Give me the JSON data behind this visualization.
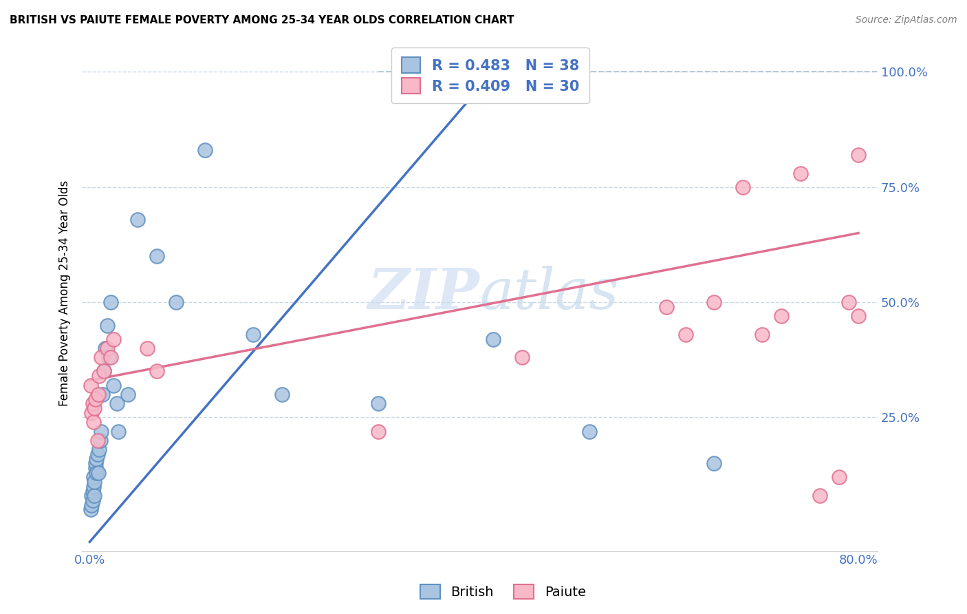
{
  "title": "BRITISH VS PAIUTE FEMALE POVERTY AMONG 25-34 YEAR OLDS CORRELATION CHART",
  "source": "Source: ZipAtlas.com",
  "ylabel": "Female Poverty Among 25-34 Year Olds",
  "xlim": [
    -0.008,
    0.82
  ],
  "ylim": [
    -0.04,
    1.08
  ],
  "xtick_positions": [
    0.0,
    0.16,
    0.32,
    0.48,
    0.64,
    0.8
  ],
  "xticklabels": [
    "0.0%",
    "",
    "",
    "",
    "",
    "80.0%"
  ],
  "ytick_positions": [
    0.0,
    0.25,
    0.5,
    0.75,
    1.0
  ],
  "right_yticklabels": [
    "",
    "25.0%",
    "50.0%",
    "75.0%",
    "100.0%"
  ],
  "accent_color": "#4472c4",
  "british_fill": "#a8c4e0",
  "british_edge": "#6090c0",
  "paiute_fill": "#f8b8c8",
  "paiute_edge": "#e07090",
  "blue_line_color": "#4472c4",
  "pink_line_color": "#e07090",
  "dashed_line_color": "#b8c8d8",
  "grid_color": "#c8d8e8",
  "watermark_color": "#c8d8f0",
  "background": "#ffffff",
  "legend_R_british": "0.483",
  "legend_N_british": "38",
  "legend_R_paiute": "0.409",
  "legend_N_paiute": "30",
  "blue_line_x0": 0.0,
  "blue_line_y0": -0.02,
  "blue_line_x1": 0.42,
  "blue_line_y1": 1.0,
  "pink_line_x0": 0.0,
  "pink_line_y0": 0.33,
  "pink_line_x1": 0.8,
  "pink_line_y1": 0.65,
  "dashed_line_x0": 0.3,
  "dashed_line_y0": 1.0,
  "dashed_line_x1": 0.82,
  "dashed_line_y1": 1.0,
  "british_x": [
    0.001,
    0.002,
    0.002,
    0.003,
    0.003,
    0.004,
    0.004,
    0.005,
    0.005,
    0.006,
    0.006,
    0.007,
    0.007,
    0.008,
    0.009,
    0.01,
    0.011,
    0.012,
    0.013,
    0.015,
    0.016,
    0.018,
    0.02,
    0.022,
    0.025,
    0.028,
    0.03,
    0.04,
    0.05,
    0.07,
    0.09,
    0.12,
    0.17,
    0.2,
    0.3,
    0.42,
    0.52,
    0.65
  ],
  "british_y": [
    0.05,
    0.06,
    0.08,
    0.07,
    0.09,
    0.1,
    0.12,
    0.08,
    0.11,
    0.14,
    0.15,
    0.13,
    0.16,
    0.17,
    0.13,
    0.18,
    0.2,
    0.22,
    0.3,
    0.35,
    0.4,
    0.45,
    0.38,
    0.5,
    0.32,
    0.28,
    0.22,
    0.3,
    0.68,
    0.6,
    0.5,
    0.83,
    0.43,
    0.3,
    0.28,
    0.42,
    0.22,
    0.15
  ],
  "paiute_x": [
    0.001,
    0.002,
    0.003,
    0.004,
    0.005,
    0.006,
    0.008,
    0.009,
    0.01,
    0.012,
    0.015,
    0.018,
    0.022,
    0.025,
    0.06,
    0.07,
    0.3,
    0.45,
    0.6,
    0.62,
    0.65,
    0.68,
    0.7,
    0.72,
    0.74,
    0.76,
    0.78,
    0.79,
    0.8,
    0.8
  ],
  "paiute_y": [
    0.32,
    0.26,
    0.28,
    0.24,
    0.27,
    0.29,
    0.2,
    0.3,
    0.34,
    0.38,
    0.35,
    0.4,
    0.38,
    0.42,
    0.4,
    0.35,
    0.22,
    0.38,
    0.49,
    0.43,
    0.5,
    0.75,
    0.43,
    0.47,
    0.78,
    0.08,
    0.12,
    0.5,
    0.82,
    0.47
  ]
}
